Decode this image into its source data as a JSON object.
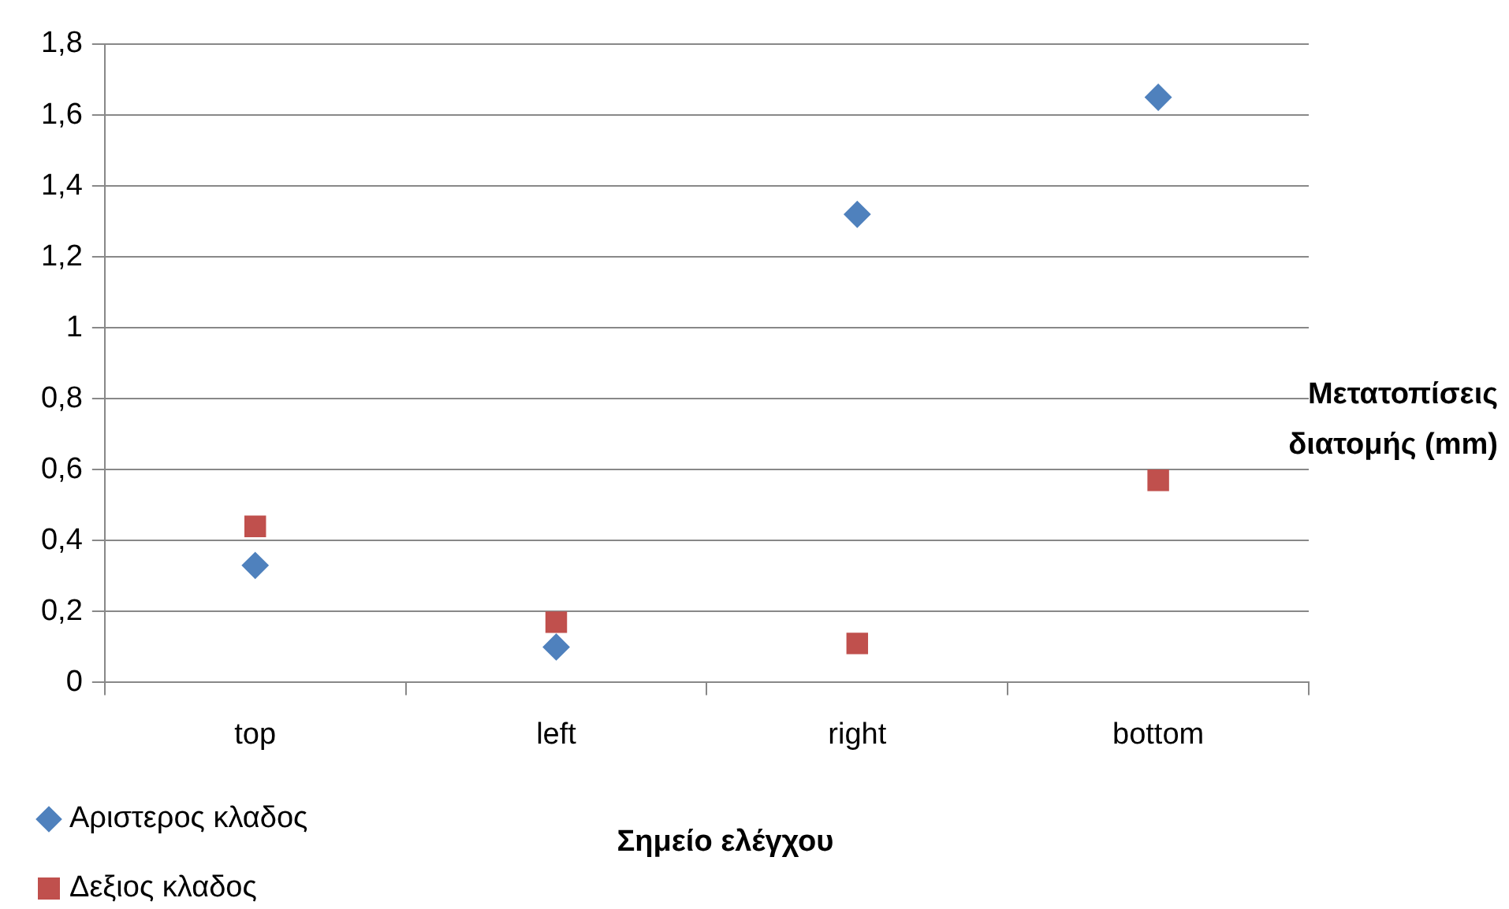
{
  "chart_data": {
    "type": "scatter",
    "xlabel": "Σημείο ελέγχου",
    "ylabel": "Μετατοπίσεις διατομής (mm)",
    "categories": [
      "top",
      "left",
      "right",
      "bottom"
    ],
    "series": [
      {
        "name": "Αριστερος κλαδος",
        "color": "#4f81bd",
        "marker": "diamond",
        "values": [
          0.33,
          0.1,
          1.32,
          1.65
        ]
      },
      {
        "name": "Δεξιος κλαδος",
        "color": "#c0504d",
        "marker": "square",
        "values": [
          0.44,
          0.17,
          0.11,
          0.57
        ]
      }
    ],
    "ylim": [
      0,
      1.8
    ],
    "yticks": [
      0,
      {
        "value": 0.2,
        "label": "0,2"
      },
      {
        "value": 0.4,
        "label": "0,4"
      },
      {
        "value": 0.6,
        "label": "0,6"
      },
      {
        "value": 0.8,
        "label": "0,8"
      },
      1,
      {
        "value": 1.2,
        "label": "1,2"
      },
      {
        "value": 1.4,
        "label": "1,4"
      },
      {
        "value": 1.6,
        "label": "1,6"
      },
      {
        "value": 1.8,
        "label": "1,8"
      }
    ],
    "grid": "y",
    "legend": "bottom left"
  }
}
